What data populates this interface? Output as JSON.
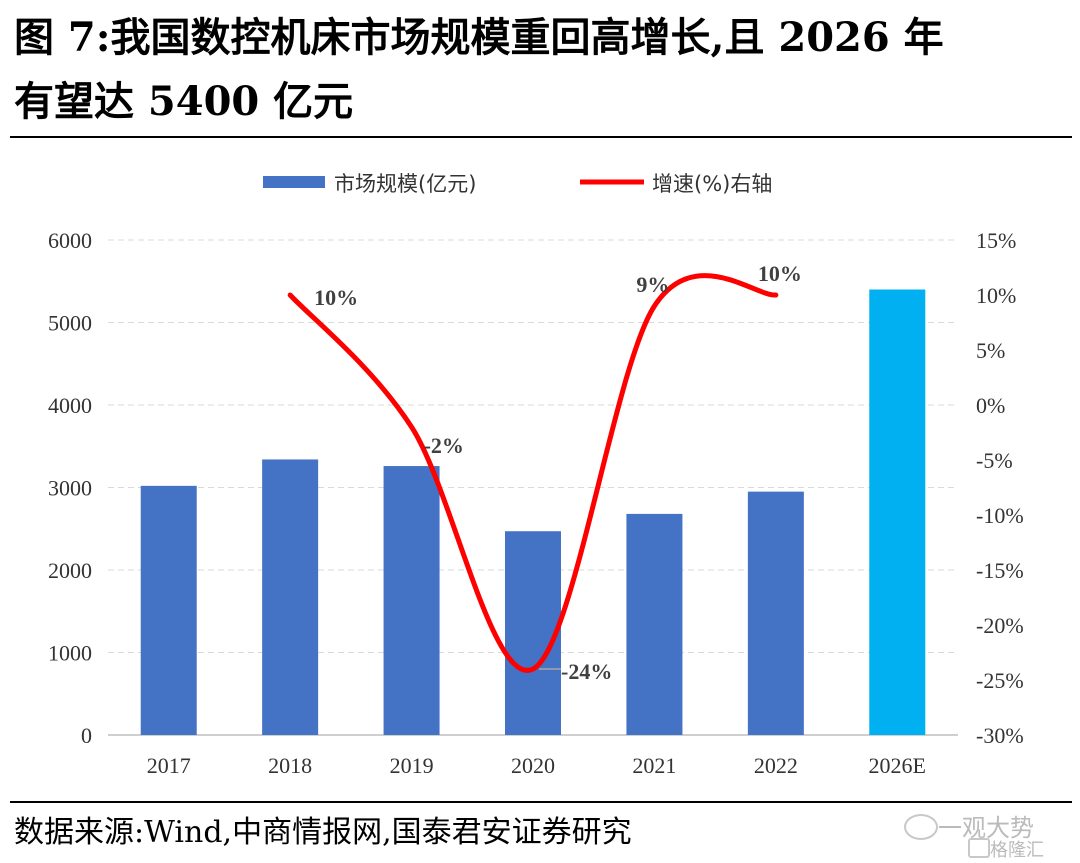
{
  "title_line1": "图 7:我国数控机床市场规模重回高增长,且 2026 年",
  "title_line2": "有望达 5400 亿元",
  "source": "数据来源:Wind,中商情报网,国泰君安证券研究",
  "watermark": {
    "line1": "一观大势",
    "line2": "格隆汇"
  },
  "colors": {
    "bar": "#4472c4",
    "bar_highlight": "#00b0f0",
    "line": "#ff0000",
    "grid": "#d9d9d9"
  },
  "chart_data": {
    "type": "bar",
    "categories": [
      "2017",
      "2018",
      "2019",
      "2020",
      "2021",
      "2022",
      "2026E"
    ],
    "series": [
      {
        "name": "市场规模(亿元)",
        "type": "bar",
        "axis": "left",
        "values": [
          3020,
          3340,
          3260,
          2470,
          2680,
          2950,
          5400
        ]
      },
      {
        "name": "增速(%)右轴",
        "type": "line",
        "axis": "right",
        "smooth": true,
        "values": [
          null,
          10,
          -2,
          -24,
          9,
          10,
          null
        ]
      }
    ],
    "data_labels": [
      "10%",
      "-2%",
      "-24%",
      "9%",
      "10%"
    ],
    "ylim_left": [
      0,
      6000
    ],
    "yticks_left": [
      "0",
      "1000",
      "2000",
      "3000",
      "4000",
      "5000",
      "6000"
    ],
    "ylim_right": [
      -30,
      15
    ],
    "yticks_right": [
      "-30%",
      "-25%",
      "-20%",
      "-15%",
      "-10%",
      "-5%",
      "0%",
      "5%",
      "10%",
      "15%"
    ],
    "grid": "horizontal dashed",
    "legend_position": "top-center"
  }
}
